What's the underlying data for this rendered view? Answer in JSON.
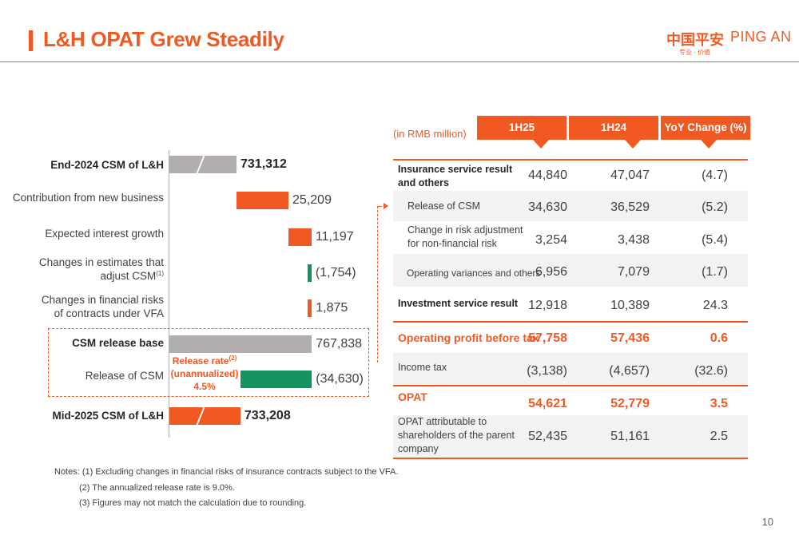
{
  "title": "L&H OPAT Grew Steadily",
  "logo": {
    "cn": "中国平安",
    "en": "PING AN",
    "tagline": "专业 · 价值"
  },
  "chart_data": [
    {
      "type": "waterfall",
      "title": "",
      "categories": [
        "End-2024 CSM of L&H",
        "Contribution from new business",
        "Expected interest growth",
        "Changes in estimates that adjust CSM(1)",
        "Changes in financial risks of contracts under VFA",
        "CSM release base",
        "Release of CSM",
        "Mid-2025 CSM of L&H"
      ],
      "values": [
        731312,
        25209,
        11197,
        -1754,
        1875,
        767838,
        -34630,
        733208
      ],
      "value_labels": [
        "731,312",
        "25,209",
        "11,197",
        "(1,754)",
        "1,875",
        "767,838",
        "(34,630)",
        "733,208"
      ],
      "bar_kinds": [
        "total",
        "increase",
        "increase",
        "decrease",
        "increase",
        "total",
        "decrease",
        "total"
      ],
      "annotation": {
        "line1": "Release rate",
        "sup": "(2)",
        "line2": "(unannualized)",
        "line3": "4.5%"
      },
      "colors": {
        "total": "#b3aeae",
        "increase": "#f05a22",
        "decrease": "#14935f",
        "final": "#f05a22"
      },
      "legend": "none",
      "grid": false
    },
    {
      "type": "table",
      "unit": "(in RMB million)",
      "columns": [
        "1H25",
        "1H24",
        "YoY Change (%)"
      ],
      "rows": [
        {
          "label": "Insurance service result and others",
          "values": [
            "44,840",
            "47,047",
            "(4.7)"
          ]
        },
        {
          "label": "Release of CSM",
          "values": [
            "34,630",
            "36,529",
            "(5.2)"
          ]
        },
        {
          "label": "Change in risk adjustment for non-financial risk",
          "values": [
            "3,254",
            "3,438",
            "(5.4)"
          ]
        },
        {
          "label": "Operating variances and others",
          "values": [
            "6,956",
            "7,079",
            "(1.7)"
          ]
        },
        {
          "label": "Investment service result",
          "values": [
            "12,918",
            "10,389",
            "24.3"
          ]
        },
        {
          "label": "Operating profit before tax",
          "values": [
            "57,758",
            "57,436",
            "0.6"
          ]
        },
        {
          "label": "Income tax",
          "values": [
            "(3,138)",
            "(4,657)",
            "(32.6)"
          ]
        },
        {
          "label": "OPAT",
          "values": [
            "54,621",
            "52,779",
            "3.5"
          ]
        },
        {
          "label": "OPAT attributable to shareholders of the parent company",
          "values": [
            "52,435",
            "51,161",
            "2.5"
          ]
        }
      ]
    }
  ],
  "wf_labels": {
    "l0": "End-2024 CSM of L&H",
    "l1": "Contribution from new business",
    "l2": "Expected interest growth",
    "l3a": "Changes in estimates that",
    "l3b": "adjust CSM",
    "l3sup": "(1)",
    "l4a": "Changes in financial risks",
    "l4b": "of contracts under VFA",
    "l5": "CSM release base",
    "l6": "Release of CSM",
    "l7": "Mid-2025 CSM of L&H"
  },
  "table_labels": {
    "r0a": "Insurance service result",
    "r0b": "and others",
    "r2a": "Change in risk adjustment",
    "r2b": "for non-financial risk",
    "r8a": "OPAT attributable to",
    "r8b": "shareholders of the parent",
    "r8c": "company"
  },
  "notes": [
    "Notes: (1) Excluding changes in financial risks of insurance contracts subject to the VFA.",
    "(2) The annualized release rate is 9.0%.",
    "(3) Figures may not match the calculation due to rounding."
  ],
  "page_number": "10"
}
